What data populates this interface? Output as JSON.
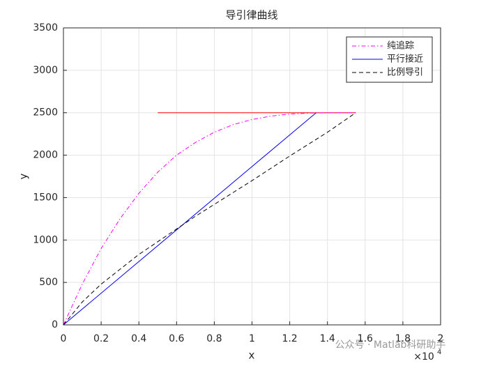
{
  "chart_data": {
    "type": "line",
    "title": "导引律曲线",
    "x_label": "x",
    "y_label": "y",
    "x_multiplier": {
      "base": "×10",
      "exponent": "4"
    },
    "xlim": [
      0,
      2
    ],
    "xticks": [
      0,
      0.2,
      0.4,
      0.6,
      0.8,
      1,
      1.2,
      1.4,
      1.6,
      1.8,
      2
    ],
    "ylim": [
      0,
      3500
    ],
    "yticks": [
      0,
      500,
      1000,
      1500,
      2000,
      2500,
      3000,
      3500
    ],
    "grid": true,
    "legend_position": "upper-right",
    "series": [
      {
        "color": "#ff0000",
        "linestyle": "solid",
        "x": [
          0.5,
          1.55
        ],
        "values": [
          2500,
          2500
        ]
      },
      {
        "name": "纯追踪",
        "color": "#ff00ff",
        "linestyle": "dashdot",
        "x": [
          0,
          0.1,
          0.2,
          0.3,
          0.4,
          0.5,
          0.6,
          0.7,
          0.8,
          0.9,
          1.0,
          1.1,
          1.2,
          1.3,
          1.4,
          1.55
        ],
        "values": [
          0,
          480,
          900,
          1250,
          1550,
          1800,
          2000,
          2150,
          2270,
          2360,
          2420,
          2460,
          2485,
          2495,
          2500,
          2500
        ]
      },
      {
        "name": "平行接近",
        "color": "#0000ff",
        "linestyle": "solid",
        "x": [
          0,
          1.34
        ],
        "values": [
          0,
          2500
        ]
      },
      {
        "name": "比例导引",
        "color": "#000000",
        "linestyle": "dashed",
        "x": [
          0,
          0.1,
          0.2,
          0.4,
          0.6,
          0.7,
          0.8,
          1.0,
          1.2,
          1.4,
          1.55
        ],
        "values": [
          0,
          270,
          480,
          830,
          1130,
          1280,
          1420,
          1700,
          1990,
          2270,
          2500
        ]
      }
    ]
  },
  "watermark": "公众号 · Matlab科研助手"
}
